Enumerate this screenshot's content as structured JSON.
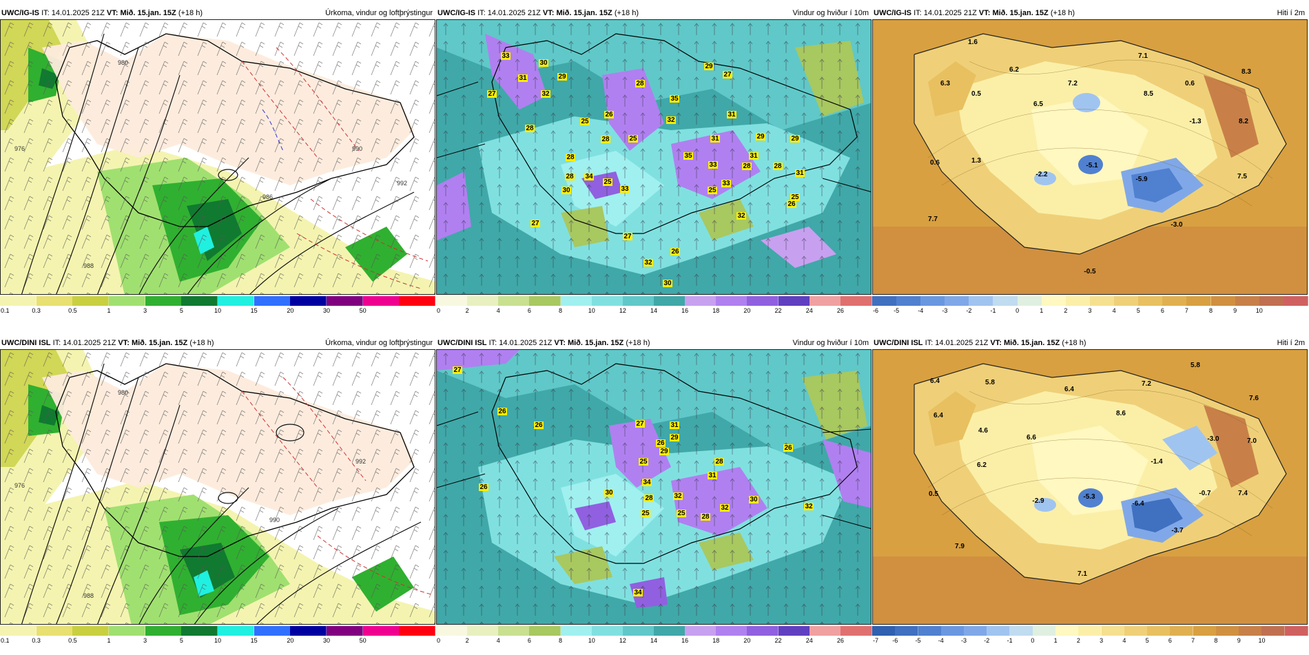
{
  "rows": [
    {
      "model": "UWC/IG-IS",
      "it_label": "IT:",
      "it_value": "14.01.2025 21Z",
      "vt_label": "VT:",
      "vt_value": "Mið. 15.jan. 15Z",
      "lead": "(+18 h)"
    },
    {
      "model": "UWC/DINI ISL",
      "it_label": "IT:",
      "it_value": "14.01.2025 21Z",
      "vt_label": "VT:",
      "vt_value": "Mið. 15.jan. 15Z",
      "lead": "(+18 h)"
    }
  ],
  "panel_titles": {
    "precip": "Úrkoma, vindur og loftþrýstingur",
    "wind": "Vindur og hviður í 10m",
    "temp": "Hiti í 2m"
  },
  "precip_scale": {
    "ticks": [
      "0.1",
      "0.3",
      "0.5",
      "1",
      "3",
      "5",
      "10",
      "15",
      "20",
      "30",
      "50"
    ],
    "colors": [
      "#f4f4b0",
      "#e8e070",
      "#c8d040",
      "#a0e070",
      "#30b030",
      "#107a30",
      "#20f0e0",
      "#3070ff",
      "#0000a0",
      "#800080",
      "#f00090",
      "#ff0010"
    ]
  },
  "wind_scale": {
    "ticks": [
      "0",
      "2",
      "4",
      "6",
      "8",
      "10",
      "12",
      "14",
      "16",
      "18",
      "20",
      "22",
      "24",
      "26"
    ],
    "colors": [
      "#f8f8e0",
      "#e8f0c0",
      "#c8e090",
      "#a8c860",
      "#a0f0f0",
      "#80e0e0",
      "#60c8c8",
      "#40a8a8",
      "#c8a0f0",
      "#b080f0",
      "#9060e0",
      "#6040c0",
      "#f0a0a0",
      "#e07070"
    ]
  },
  "temp_scale_top": {
    "ticks": [
      "-6",
      "-5",
      "-4",
      "-3",
      "-2",
      "-1",
      "0",
      "1",
      "2",
      "3",
      "4",
      "5",
      "6",
      "7",
      "8",
      "9",
      "10"
    ],
    "colors": [
      "#4070c0",
      "#5080d0",
      "#6a98e0",
      "#80a8e8",
      "#a0c4f0",
      "#c0dcf0",
      "#e0f0e0",
      "#fff8c0",
      "#fbefa8",
      "#f5e090",
      "#efd078",
      "#e8c060",
      "#e0b050",
      "#d8a040",
      "#d09040",
      "#c88048",
      "#c07050",
      "#d06060"
    ]
  },
  "temp_scale_bottom": {
    "ticks": [
      "-7",
      "-6",
      "-5",
      "-4",
      "-3",
      "-2",
      "-1",
      "0",
      "1",
      "2",
      "3",
      "4",
      "5",
      "6",
      "7",
      "8",
      "9",
      "10"
    ],
    "colors": [
      "#3060b0",
      "#4070c0",
      "#5080d0",
      "#6a98e0",
      "#80a8e8",
      "#a0c4f0",
      "#c0dcf0",
      "#e0f0e0",
      "#fff8c0",
      "#fbefa8",
      "#f5e090",
      "#efd078",
      "#e8c060",
      "#e0b050",
      "#d8a040",
      "#d09040",
      "#c88048",
      "#c07050",
      "#d06060"
    ]
  },
  "wind_labels_top": [
    "33",
    "30",
    "29",
    "31",
    "27",
    "32",
    "29",
    "28",
    "35",
    "27",
    "28",
    "29",
    "26",
    "32",
    "31",
    "28",
    "28",
    "25",
    "28",
    "35",
    "31",
    "25",
    "31",
    "33",
    "29",
    "28",
    "30",
    "34",
    "25",
    "33",
    "33",
    "28",
    "25",
    "31",
    "25",
    "27",
    "26",
    "32",
    "27",
    "26",
    "32",
    "30"
  ],
  "wind_labels_bottom": [
    "27",
    "26",
    "26",
    "26",
    "27",
    "31",
    "26",
    "29",
    "25",
    "29",
    "28",
    "34",
    "31",
    "30",
    "28",
    "26",
    "30",
    "32",
    "32",
    "32",
    "28",
    "25",
    "25",
    "34"
  ],
  "temp_labels_top": [
    "1.6",
    "7.1",
    "6.2",
    "0.5",
    "7.2",
    "6.3",
    "8.5",
    "0.6",
    "8.3",
    "6.5",
    "-1.3",
    "8.2",
    "0.6",
    "1.3",
    "-2.2",
    "-5.1",
    "-5.9",
    "7.5",
    "7.7",
    "-3.0",
    "-0.5"
  ],
  "temp_labels_bottom": [
    "5.8",
    "6.4",
    "5.8",
    "7.2",
    "6.4",
    "8.6",
    "7.6",
    "6.4",
    "4.6",
    "6.6",
    "-3.0",
    "7.0",
    "6.2",
    "-1.4",
    "0.5",
    "-2.9",
    "-5.3",
    "-0.7",
    "7.4",
    "-6.4",
    "-3.7",
    "7.9",
    "7.1"
  ],
  "isobar_labels": [
    "980",
    "976",
    "988",
    "990",
    "992",
    "986"
  ]
}
